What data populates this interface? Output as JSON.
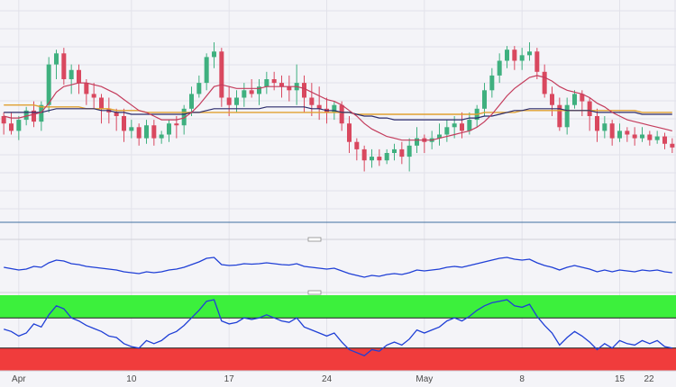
{
  "chart_data": {
    "type": "candlestick",
    "title": "",
    "x_tick_labels": [
      "Apr",
      "10",
      "17",
      "24",
      "May",
      "8",
      "15",
      "22"
    ],
    "grid": true,
    "legend": "none",
    "price_panel": {
      "candles": [
        [
          60,
          56,
          50,
          62
        ],
        [
          56,
          52,
          50,
          62
        ],
        [
          52,
          58,
          47,
          60
        ],
        [
          58,
          63,
          55,
          65
        ],
        [
          63,
          57,
          54,
          68
        ],
        [
          57,
          66,
          52,
          68
        ],
        [
          66,
          88,
          62,
          92
        ],
        [
          88,
          94,
          80,
          96
        ],
        [
          94,
          80,
          77,
          97
        ],
        [
          80,
          85,
          72,
          88
        ],
        [
          85,
          78,
          72,
          88
        ],
        [
          78,
          72,
          66,
          80
        ],
        [
          72,
          70,
          64,
          78
        ],
        [
          70,
          64,
          56,
          72
        ],
        [
          64,
          62,
          56,
          70
        ],
        [
          62,
          60,
          52,
          64
        ],
        [
          60,
          52,
          46,
          64
        ],
        [
          52,
          54,
          48,
          58
        ],
        [
          54,
          48,
          44,
          56
        ],
        [
          48,
          55,
          45,
          58
        ],
        [
          55,
          48,
          44,
          58
        ],
        [
          48,
          50,
          45,
          52
        ],
        [
          50,
          56,
          46,
          58
        ],
        [
          56,
          55,
          48,
          60
        ],
        [
          55,
          64,
          50,
          66
        ],
        [
          64,
          72,
          60,
          76
        ],
        [
          72,
          78,
          70,
          82
        ],
        [
          78,
          92,
          74,
          94
        ],
        [
          92,
          95,
          86,
          100
        ],
        [
          95,
          70,
          65,
          97
        ],
        [
          70,
          66,
          60,
          76
        ],
        [
          66,
          70,
          62,
          74
        ],
        [
          70,
          74,
          65,
          78
        ],
        [
          74,
          72,
          70,
          80
        ],
        [
          72,
          76,
          66,
          80
        ],
        [
          76,
          80,
          72,
          84
        ],
        [
          80,
          78,
          74,
          84
        ],
        [
          78,
          76,
          70,
          82
        ],
        [
          76,
          74,
          68,
          82
        ],
        [
          74,
          78,
          66,
          88
        ],
        [
          78,
          70,
          62,
          82
        ],
        [
          70,
          66,
          60,
          78
        ],
        [
          66,
          64,
          58,
          76
        ],
        [
          64,
          62,
          56,
          70
        ],
        [
          62,
          66,
          58,
          68
        ],
        [
          66,
          56,
          52,
          68
        ],
        [
          56,
          46,
          40,
          60
        ],
        [
          46,
          42,
          36,
          48
        ],
        [
          42,
          36,
          30,
          44
        ],
        [
          36,
          38,
          32,
          42
        ],
        [
          38,
          36,
          33,
          42
        ],
        [
          36,
          40,
          34,
          42
        ],
        [
          40,
          42,
          36,
          45
        ],
        [
          42,
          38,
          34,
          46
        ],
        [
          38,
          44,
          30,
          48
        ],
        [
          44,
          48,
          40,
          54
        ],
        [
          48,
          46,
          40,
          50
        ],
        [
          46,
          48,
          42,
          52
        ],
        [
          48,
          50,
          44,
          56
        ],
        [
          50,
          54,
          46,
          58
        ],
        [
          54,
          56,
          48,
          60
        ],
        [
          56,
          52,
          48,
          62
        ],
        [
          52,
          58,
          50,
          62
        ],
        [
          58,
          64,
          54,
          66
        ],
        [
          64,
          74,
          60,
          78
        ],
        [
          74,
          82,
          70,
          86
        ],
        [
          82,
          90,
          78,
          94
        ],
        [
          90,
          96,
          86,
          98
        ],
        [
          96,
          90,
          85,
          98
        ],
        [
          90,
          93,
          85,
          97
        ],
        [
          93,
          95,
          90,
          100
        ],
        [
          95,
          84,
          80,
          97
        ],
        [
          84,
          72,
          70,
          88
        ],
        [
          72,
          66,
          60,
          76
        ],
        [
          66,
          54,
          52,
          70
        ],
        [
          54,
          66,
          50,
          70
        ],
        [
          66,
          72,
          64,
          74
        ],
        [
          72,
          68,
          60,
          74
        ],
        [
          68,
          60,
          52,
          70
        ],
        [
          60,
          52,
          46,
          64
        ],
        [
          52,
          56,
          48,
          60
        ],
        [
          56,
          48,
          44,
          58
        ],
        [
          48,
          52,
          46,
          56
        ],
        [
          52,
          50,
          46,
          54
        ],
        [
          50,
          48,
          44,
          54
        ],
        [
          48,
          50,
          46,
          54
        ],
        [
          50,
          47,
          44,
          52
        ],
        [
          47,
          49,
          45,
          52
        ],
        [
          49,
          45,
          42,
          51
        ],
        [
          45,
          43,
          40,
          48
        ]
      ],
      "ema_fast": [
        60,
        59,
        59,
        60,
        61,
        62,
        67,
        73,
        76,
        77,
        78,
        78,
        77,
        76,
        74,
        72,
        69,
        66,
        63,
        62,
        60,
        58,
        58,
        58,
        59,
        62,
        66,
        71,
        76,
        77,
        76,
        75,
        75,
        75,
        75,
        76,
        76,
        76,
        76,
        76,
        75,
        73,
        71,
        69,
        68,
        66,
        63,
        60,
        56,
        53,
        51,
        49,
        48,
        47,
        47,
        47,
        47,
        47,
        48,
        49,
        50,
        51,
        52,
        54,
        57,
        61,
        66,
        71,
        75,
        78,
        81,
        82,
        81,
        79,
        76,
        74,
        73,
        72,
        70,
        67,
        65,
        62,
        60,
        58,
        57,
        56,
        55,
        54,
        53,
        52
      ],
      "sma_mid": [
        62,
        62,
        62,
        62,
        62,
        62,
        63,
        64,
        64,
        64,
        64,
        64,
        64,
        63,
        63,
        62,
        62,
        61,
        61,
        61,
        61,
        61,
        61,
        61,
        61,
        62,
        62,
        63,
        64,
        64,
        64,
        64,
        64,
        64,
        64,
        65,
        65,
        65,
        65,
        65,
        65,
        64,
        64,
        63,
        63,
        62,
        62,
        61,
        60,
        60,
        59,
        59,
        58,
        58,
        58,
        58,
        58,
        58,
        58,
        58,
        58,
        58,
        59,
        59,
        60,
        60,
        61,
        62,
        63,
        63,
        64,
        64,
        64,
        64,
        64,
        63,
        63,
        63,
        63,
        62,
        62,
        62,
        62,
        62,
        62,
        61,
        61,
        61,
        61,
        61
      ],
      "sma_slow": [
        66,
        66,
        66,
        66,
        66,
        65,
        65,
        65,
        65,
        65,
        65,
        64,
        64,
        64,
        64,
        63,
        63,
        63,
        63,
        62,
        62,
        62,
        62,
        62,
        62,
        62,
        62,
        62,
        62,
        62,
        62,
        62,
        62,
        62,
        62,
        62,
        62,
        62,
        62,
        62,
        62,
        62,
        62,
        62,
        62,
        62,
        62,
        61,
        61,
        61,
        61,
        61,
        61,
        61,
        61,
        61,
        61,
        61,
        61,
        61,
        61,
        61,
        61,
        61,
        62,
        62,
        62,
        62,
        62,
        63,
        63,
        63,
        63,
        63,
        63,
        63,
        63,
        63,
        63,
        63,
        63,
        63,
        63,
        63,
        63,
        62,
        62,
        62,
        62,
        62
      ],
      "horizontal_line": 0
    },
    "indicator_1": {
      "values": [
        50,
        47,
        44,
        46,
        52,
        50,
        60,
        66,
        64,
        58,
        56,
        52,
        50,
        48,
        46,
        44,
        40,
        38,
        36,
        40,
        38,
        40,
        44,
        46,
        50,
        56,
        62,
        70,
        72,
        56,
        54,
        55,
        58,
        57,
        58,
        60,
        58,
        56,
        55,
        58,
        52,
        50,
        48,
        46,
        48,
        42,
        36,
        32,
        28,
        32,
        30,
        34,
        36,
        34,
        38,
        44,
        42,
        44,
        46,
        50,
        52,
        50,
        54,
        58,
        62,
        66,
        70,
        72,
        68,
        66,
        68,
        60,
        54,
        50,
        44,
        50,
        54,
        50,
        46,
        40,
        44,
        40,
        44,
        42,
        40,
        44,
        42,
        44,
        40,
        38
      ],
      "ylim": [
        0,
        100
      ]
    },
    "indicator_2": {
      "values": [
        55,
        52,
        46,
        50,
        62,
        58,
        74,
        86,
        82,
        70,
        66,
        60,
        56,
        52,
        46,
        44,
        36,
        32,
        30,
        40,
        36,
        40,
        48,
        52,
        60,
        70,
        80,
        92,
        94,
        66,
        62,
        64,
        70,
        68,
        70,
        74,
        70,
        66,
        64,
        70,
        58,
        54,
        50,
        46,
        50,
        38,
        28,
        24,
        20,
        28,
        26,
        34,
        38,
        34,
        42,
        54,
        50,
        54,
        58,
        66,
        70,
        66,
        72,
        80,
        86,
        90,
        92,
        94,
        86,
        84,
        88,
        72,
        60,
        50,
        34,
        44,
        52,
        46,
        38,
        28,
        36,
        30,
        40,
        36,
        34,
        40,
        36,
        40,
        32,
        30
      ],
      "ylim": [
        0,
        100
      ],
      "zones": {
        "upper": [
          70,
          100
        ],
        "lower": [
          0,
          30
        ]
      },
      "zone_colors": {
        "upper": "#3cf03c",
        "lower": "#f03c3c"
      }
    },
    "colors": {
      "up": "#3fb07f",
      "down": "#d9485f",
      "ema_fast": "#c43c5c",
      "sma_mid": "#2b2b6b",
      "sma_slow": "#e0a030",
      "indicator": "#1f3fd6",
      "background": "#f4f4f8"
    }
  }
}
